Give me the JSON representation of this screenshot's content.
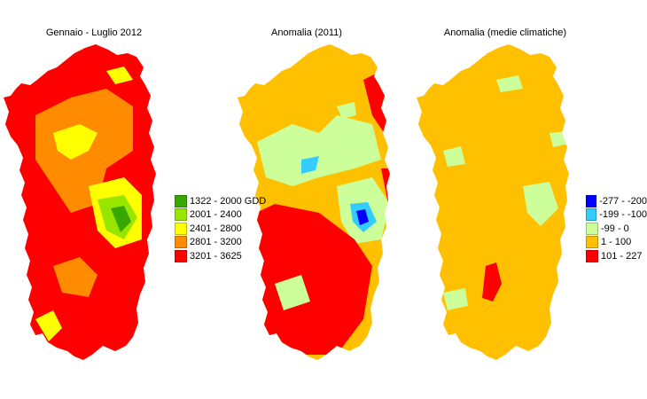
{
  "panels": [
    {
      "title": "Gennaio - Luglio 2012",
      "base_color": "#ff0000"
    },
    {
      "title": "Anomalia (2011)",
      "base_color": "#ffc000"
    },
    {
      "title": "Anomalia (medie climatiche)",
      "base_color": "#ffc000"
    }
  ],
  "legend_gdd": [
    {
      "label": "1322 - 2000 GDD",
      "color": "#38a800"
    },
    {
      "label": "2001 - 2400",
      "color": "#98e600"
    },
    {
      "label": "2401 - 2800",
      "color": "#ffff00"
    },
    {
      "label": "2801 - 3200",
      "color": "#ff8c00"
    },
    {
      "label": "3201 - 3625",
      "color": "#ff0000"
    }
  ],
  "legend_anomaly": [
    {
      "label": "-277 - -200",
      "color": "#0000ff"
    },
    {
      "label": "-199 - -100",
      "color": "#33ccff"
    },
    {
      "label": "-99 - 0",
      "color": "#ccff99"
    },
    {
      "label": "1 - 100",
      "color": "#ffc000"
    },
    {
      "label": "101 - 227",
      "color": "#ff0000"
    }
  ]
}
